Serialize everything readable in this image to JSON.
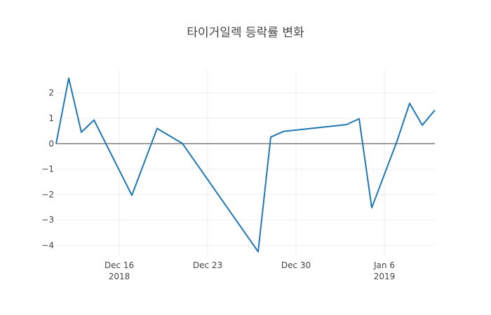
{
  "chart_data": {
    "type": "line",
    "title": "타이거일렉 등락률 변화",
    "xlabel": "",
    "ylabel": "",
    "x": [
      "2018-12-11",
      "2018-12-12",
      "2018-12-13",
      "2018-12-14",
      "2018-12-17",
      "2018-12-19",
      "2018-12-21",
      "2018-12-27",
      "2018-12-28",
      "2018-12-29",
      "2019-01-03",
      "2019-01-04",
      "2019-01-05",
      "2019-01-07",
      "2019-01-08",
      "2019-01-09",
      "2019-01-10"
    ],
    "values": [
      0.0,
      2.58,
      0.45,
      0.93,
      -2.03,
      0.6,
      0.01,
      -4.25,
      0.26,
      0.48,
      0.75,
      0.98,
      -2.52,
      0.1,
      1.59,
      0.73,
      1.32
    ],
    "xlim": [
      "2018-12-11",
      "2019-01-10"
    ],
    "ylim": [
      -4.4,
      2.9
    ],
    "x_ticks": [
      {
        "date": "2018-12-16",
        "label": "Dec 16",
        "sublabel": "2018"
      },
      {
        "date": "2018-12-23",
        "label": "Dec 23",
        "sublabel": ""
      },
      {
        "date": "2018-12-30",
        "label": "Dec 30",
        "sublabel": ""
      },
      {
        "date": "2019-01-06",
        "label": "Jan 6",
        "sublabel": "2019"
      }
    ],
    "y_ticks": [
      {
        "value": 2,
        "label": "2"
      },
      {
        "value": 1,
        "label": "1"
      },
      {
        "value": 0,
        "label": "0"
      },
      {
        "value": -1,
        "label": "−1"
      },
      {
        "value": -2,
        "label": "−2"
      },
      {
        "value": -3,
        "label": "−3"
      },
      {
        "value": -4,
        "label": "−4"
      }
    ],
    "grid": true,
    "line_color": "#1f77b4"
  }
}
